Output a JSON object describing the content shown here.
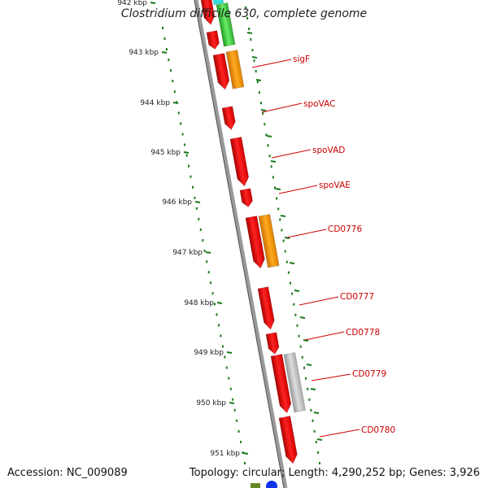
{
  "title": "Clostridium difficile 630, complete genome",
  "footer": {
    "accession": "Accession: NC_009089",
    "topology": "Topology: circular; Length: 4,290,252 bp; Genes: 3,926"
  },
  "ruler": {
    "labels": [
      "942 kbp",
      "943 kbp",
      "944 kbp",
      "945 kbp",
      "946 kbp",
      "947 kbp",
      "948 kbp",
      "949 kbp",
      "950 kbp",
      "951 kbp"
    ],
    "tick_color": "#1a7a1a"
  },
  "genes": [
    {
      "label": "sigF",
      "color": "#ee1111"
    },
    {
      "label": "spoVAC",
      "color": "#ee1111"
    },
    {
      "label": "spoVAD",
      "color": "#ee1111"
    },
    {
      "label": "spoVAE",
      "color": "#ee1111"
    },
    {
      "label": "CD0776",
      "color": "#ee1111"
    },
    {
      "label": "CD0777",
      "color": "#ee1111"
    },
    {
      "label": "CD0778",
      "color": "#ee1111"
    },
    {
      "label": "CD0779",
      "color": "#ee1111"
    },
    {
      "label": "CD0780",
      "color": "#ee1111"
    }
  ],
  "colors": {
    "cds": "#ee1111",
    "orange": "#ff9900",
    "green": "#44cc44",
    "gray": "#bbbbbb",
    "cyan": "#33dddd",
    "backbone": "#888888",
    "label": "#cc0000"
  }
}
